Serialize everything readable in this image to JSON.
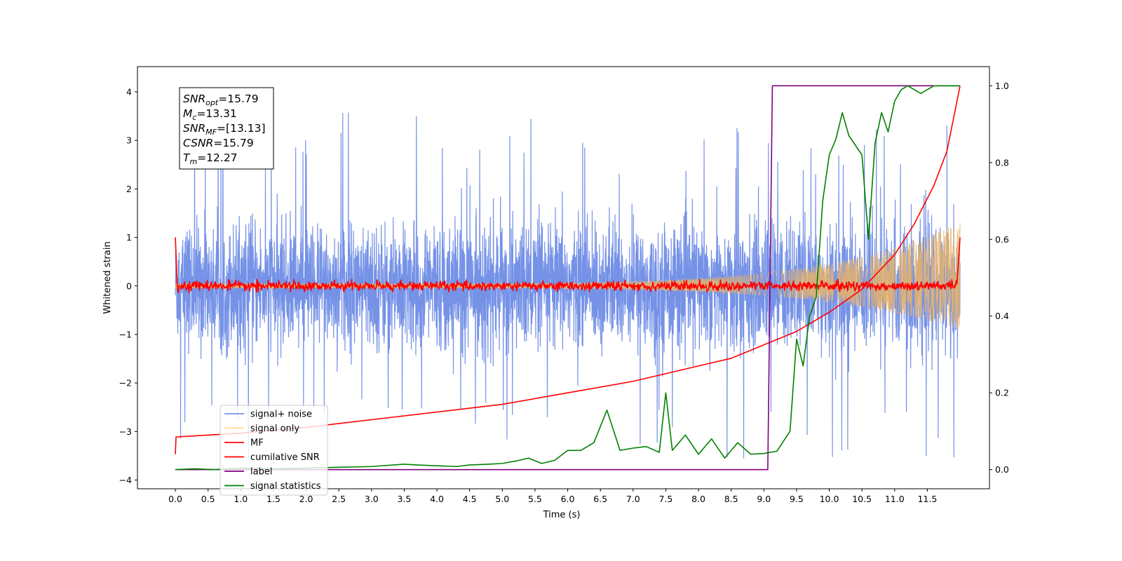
{
  "chart_data": {
    "type": "line",
    "xlabel": "Time (s)",
    "ylabel_left": "Whitened strain",
    "ylabel_right": "",
    "xlim": [
      -0.58,
      12.45
    ],
    "ylim_left": [
      -4.18,
      4.52
    ],
    "ylim_right": [
      -0.05,
      1.05
    ],
    "x_ticks": [
      "0.0",
      "0.5",
      "1.0",
      "1.5",
      "2.0",
      "2.5",
      "3.0",
      "3.5",
      "4.0",
      "4.5",
      "5.0",
      "5.5",
      "6.0",
      "6.5",
      "7.0",
      "7.5",
      "8.0",
      "8.5",
      "9.0",
      "9.5",
      "10.0",
      "10.5",
      "11.0",
      "11.5"
    ],
    "y_left_ticks": [
      "4",
      "3",
      "2",
      "1",
      "0",
      "−1",
      "−2",
      "−3",
      "−4"
    ],
    "y_right_ticks": [
      "1.0",
      "0.8",
      "0.6",
      "0.4",
      "0.2",
      "0.0"
    ],
    "grid": false,
    "legend_position": "lower-left",
    "annotation": {
      "lines": [
        {
          "base": "SNR",
          "sub": "opt",
          "text": "=15.79"
        },
        {
          "base": "M",
          "sub": "c",
          "text": "=13.31"
        },
        {
          "base": "SNR",
          "sub": "MF",
          "text": "=[13.13]"
        },
        {
          "base": "CSNR",
          "sub": "",
          "text": "=15.79"
        },
        {
          "base": "T",
          "sub": "m",
          "text": "=12.27"
        }
      ]
    },
    "series": [
      {
        "name": "signal+ noise",
        "color": "#7592e7",
        "axis": "left",
        "style": "noise",
        "t_range": [
          0.0,
          12.0
        ],
        "envelope_upper_typical": 1.7,
        "envelope_lower_typical": -1.8,
        "peak_max": 4.12,
        "peak_min": -3.8
      },
      {
        "name": "signal only",
        "color": "#ffd27a",
        "axis": "left",
        "style": "chirp",
        "t_range": [
          0.0,
          12.0
        ],
        "start_amplitude": 0.05,
        "end_amplitude_upper": 1.3,
        "end_amplitude_lower": -0.9
      },
      {
        "name": "MF",
        "color": "#ff0000",
        "axis": "left",
        "style": "noisy-flat",
        "t_range": [
          0.0,
          12.0
        ],
        "start_value": 1.0,
        "baseline": 0.0,
        "jitter": 0.1,
        "end_value": 1.0
      },
      {
        "name": "cumilative SNR",
        "color": "#ff0000",
        "axis": "right",
        "x": [
          0.0,
          0.01,
          1.0,
          2.0,
          3.0,
          4.0,
          5.0,
          6.0,
          7.0,
          8.0,
          8.5,
          9.0,
          9.5,
          10.0,
          10.5,
          11.0,
          11.3,
          11.6,
          11.8,
          12.0
        ],
        "y": [
          0.04,
          0.085,
          0.095,
          0.11,
          0.13,
          0.15,
          0.17,
          0.2,
          0.23,
          0.27,
          0.29,
          0.325,
          0.36,
          0.41,
          0.47,
          0.56,
          0.64,
          0.74,
          0.83,
          1.0
        ]
      },
      {
        "name": "label",
        "color": "#800080",
        "axis": "right",
        "x": [
          0.0,
          9.06,
          9.13,
          12.0
        ],
        "y": [
          0.0,
          0.0,
          1.0,
          1.0
        ]
      },
      {
        "name": "signal statistics",
        "color": "#008000",
        "axis": "right",
        "x": [
          0.0,
          0.3,
          0.6,
          1.0,
          1.5,
          2.0,
          2.5,
          3.0,
          3.5,
          3.7,
          4.0,
          4.3,
          4.5,
          4.8,
          5.0,
          5.2,
          5.4,
          5.6,
          5.8,
          6.0,
          6.2,
          6.4,
          6.6,
          6.8,
          7.0,
          7.2,
          7.4,
          7.5,
          7.6,
          7.8,
          8.0,
          8.2,
          8.4,
          8.6,
          8.8,
          9.0,
          9.2,
          9.4,
          9.5,
          9.6,
          9.7,
          9.8,
          9.9,
          10.0,
          10.1,
          10.2,
          10.3,
          10.5,
          10.6,
          10.7,
          10.8,
          10.9,
          11.0,
          11.1,
          11.2,
          11.4,
          11.6,
          11.8,
          12.0
        ],
        "y": [
          0.0,
          0.002,
          0.0,
          0.004,
          0.002,
          0.004,
          0.006,
          0.008,
          0.014,
          0.012,
          0.01,
          0.008,
          0.012,
          0.014,
          0.016,
          0.022,
          0.03,
          0.016,
          0.024,
          0.05,
          0.05,
          0.07,
          0.155,
          0.05,
          0.056,
          0.06,
          0.045,
          0.2,
          0.05,
          0.09,
          0.04,
          0.08,
          0.03,
          0.07,
          0.04,
          0.042,
          0.048,
          0.1,
          0.34,
          0.27,
          0.4,
          0.45,
          0.7,
          0.82,
          0.86,
          0.93,
          0.87,
          0.82,
          0.6,
          0.85,
          0.93,
          0.88,
          0.96,
          0.99,
          1.0,
          0.98,
          1.0,
          1.0,
          1.0
        ]
      }
    ]
  }
}
